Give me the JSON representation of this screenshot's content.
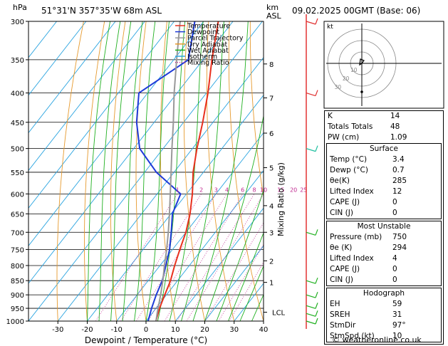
{
  "header": {
    "units": "hPa",
    "location": "51°31'N  357°35'W  68m  ASL",
    "km_label": "km",
    "asl_label": "ASL",
    "datetime": "09.02.2025  00GMT  (Base: 06)"
  },
  "legend": {
    "items": [
      {
        "label": "Temperature",
        "color": "#e8301e"
      },
      {
        "label": "Dewpoint",
        "color": "#1e3ad8"
      },
      {
        "label": "Parcel Trajectory",
        "color": "#999999"
      },
      {
        "label": "Dry Adiabat",
        "color": "#e69a2e"
      },
      {
        "label": "Wet Adiabat",
        "color": "#20b020"
      },
      {
        "label": "Isotherm",
        "color": "#2aa4e0"
      },
      {
        "label": "Mixing Ratio",
        "color": "#c02890"
      }
    ]
  },
  "chart_data": {
    "type": "line",
    "xlabel": "Dewpoint / Temperature (°C)",
    "ylabel_right": "Mixing Ratio (g/kg)",
    "x_ticks": [
      -30,
      -20,
      -10,
      0,
      10,
      20,
      30,
      40
    ],
    "pressure_levels": [
      300,
      350,
      400,
      450,
      500,
      550,
      600,
      650,
      700,
      750,
      800,
      850,
      900,
      950,
      1000
    ],
    "km_ticks": [
      {
        "p": 856,
        "label": "1"
      },
      {
        "p": 785,
        "label": "2"
      },
      {
        "p": 700,
        "label": "3"
      },
      {
        "p": 629,
        "label": "4"
      },
      {
        "p": 540,
        "label": "5"
      },
      {
        "p": 470,
        "label": "6"
      },
      {
        "p": 408,
        "label": "7"
      },
      {
        "p": 356,
        "label": "8"
      }
    ],
    "lcl_label": "LCL",
    "lcl_p": 965,
    "mixing_ratio_labels": [
      "1",
      "2",
      "3",
      "4",
      "6",
      "8",
      "10",
      "15",
      "20",
      "25"
    ],
    "mixing_ratios": [
      1,
      2,
      3,
      4,
      6,
      8,
      10,
      15,
      20,
      25
    ],
    "series": [
      {
        "name": "Temperature",
        "color": "#e8301e",
        "points": [
          [
            1000,
            3.4
          ],
          [
            950,
            1.2
          ],
          [
            900,
            -0.6
          ],
          [
            850,
            -2.4
          ],
          [
            800,
            -5
          ],
          [
            750,
            -7.5
          ],
          [
            700,
            -10
          ],
          [
            650,
            -13.5
          ],
          [
            600,
            -18
          ],
          [
            550,
            -23.5
          ],
          [
            500,
            -28.5
          ],
          [
            450,
            -33.5
          ],
          [
            400,
            -39.5
          ],
          [
            350,
            -47
          ],
          [
            300,
            -55
          ]
        ]
      },
      {
        "name": "Dewpoint",
        "color": "#1e3ad8",
        "points": [
          [
            1000,
            0.7
          ],
          [
            950,
            -1.5
          ],
          [
            900,
            -3.5
          ],
          [
            850,
            -5.2
          ],
          [
            800,
            -8
          ],
          [
            750,
            -11
          ],
          [
            700,
            -15
          ],
          [
            650,
            -19.5
          ],
          [
            600,
            -22
          ],
          [
            550,
            -36
          ],
          [
            500,
            -48
          ],
          [
            450,
            -56
          ],
          [
            400,
            -63
          ],
          [
            350,
            -55
          ],
          [
            300,
            -63
          ]
        ]
      },
      {
        "name": "Parcel Trajectory",
        "color": "#999999",
        "points": [
          [
            1000,
            3.4
          ],
          [
            965,
            1.5
          ],
          [
            900,
            -2
          ],
          [
            850,
            -5
          ],
          [
            800,
            -8.5
          ],
          [
            750,
            -12
          ],
          [
            700,
            -16
          ],
          [
            650,
            -20.5
          ],
          [
            600,
            -25.5
          ],
          [
            550,
            -31
          ],
          [
            500,
            -37
          ],
          [
            450,
            -43.5
          ],
          [
            400,
            -51
          ],
          [
            350,
            -59
          ],
          [
            300,
            -68
          ]
        ]
      }
    ],
    "winds": [
      {
        "p": 1000,
        "color": "#20b020"
      },
      {
        "p": 970,
        "color": "#20b020"
      },
      {
        "p": 940,
        "color": "#20b020"
      },
      {
        "p": 900,
        "color": "#20b020"
      },
      {
        "p": 850,
        "color": "#20b020"
      },
      {
        "p": 700,
        "color": "#20b020"
      },
      {
        "p": 500,
        "color": "#20c0a0"
      },
      {
        "p": 400,
        "color": "#e03030"
      },
      {
        "p": 300,
        "color": "#e03030"
      }
    ]
  },
  "hodograph": {
    "label": "kt",
    "ring_labels": [
      "10",
      "20",
      "30"
    ]
  },
  "indices": {
    "rows": [
      {
        "k": "K",
        "v": "14"
      },
      {
        "k": "Totals Totals",
        "v": "48"
      },
      {
        "k": "PW (cm)",
        "v": "1.09"
      }
    ]
  },
  "surface": {
    "title": "Surface",
    "rows": [
      {
        "k": "Temp (°C)",
        "v": "3.4"
      },
      {
        "k": "Dewp (°C)",
        "v": "0.7"
      },
      {
        "k": "θe(K)",
        "v": "285"
      },
      {
        "k": "Lifted Index",
        "v": "12"
      },
      {
        "k": "CAPE (J)",
        "v": "0"
      },
      {
        "k": "CIN (J)",
        "v": "0"
      }
    ]
  },
  "unstable": {
    "title": "Most Unstable",
    "rows": [
      {
        "k": "Pressure (mb)",
        "v": "750"
      },
      {
        "k": "θe (K)",
        "v": "294"
      },
      {
        "k": "Lifted Index",
        "v": "4"
      },
      {
        "k": "CAPE (J)",
        "v": "0"
      },
      {
        "k": "CIN (J)",
        "v": "0"
      }
    ]
  },
  "hodo_table": {
    "title": "Hodograph",
    "rows": [
      {
        "k": "EH",
        "v": "59"
      },
      {
        "k": "SREH",
        "v": "31"
      },
      {
        "k": "StmDir",
        "v": "97°"
      },
      {
        "k": "StmSpd (kt)",
        "v": "10"
      }
    ]
  },
  "footer": "© weatheronline.co.uk"
}
